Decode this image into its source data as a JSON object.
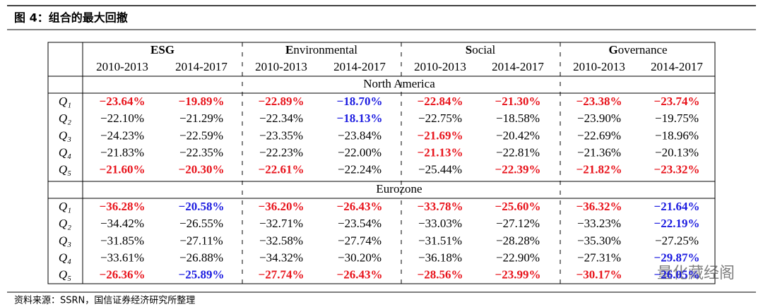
{
  "header": {
    "title": "图 4：组合的最大回撤"
  },
  "table": {
    "groups": [
      "ESG",
      "Environmental",
      "Social",
      "Governance"
    ],
    "periods": [
      "2010-2013",
      "2014-2017",
      "2010-2013",
      "2014-2017",
      "2010-2013",
      "2014-2017",
      "2010-2013",
      "2014-2017"
    ],
    "colors": {
      "red": "#e8141c",
      "blue": "#1c1ce0"
    },
    "sections": [
      {
        "region": "North America",
        "rows": [
          {
            "label": "Q₁",
            "cells": [
              {
                "text": "−23.64%",
                "color": "red"
              },
              {
                "text": "−19.89%",
                "color": "red"
              },
              {
                "text": "−22.89%",
                "color": "red"
              },
              {
                "text": "−18.70%",
                "color": "blue"
              },
              {
                "text": "−22.84%",
                "color": "red"
              },
              {
                "text": "−21.30%",
                "color": "red"
              },
              {
                "text": "−23.38%",
                "color": "red"
              },
              {
                "text": "−23.74%",
                "color": "red"
              }
            ]
          },
          {
            "label": "Q₂",
            "cells": [
              "−22.10%",
              "−21.29%",
              "−22.34%",
              {
                "text": "−18.13%",
                "color": "blue"
              },
              "−22.75%",
              "−18.58%",
              "−23.90%",
              "−19.75%"
            ]
          },
          {
            "label": "Q₃",
            "cells": [
              "−24.23%",
              "−22.59%",
              "−23.35%",
              "−23.84%",
              {
                "text": "−21.69%",
                "color": "red"
              },
              "−20.42%",
              "−22.69%",
              "−18.96%"
            ]
          },
          {
            "label": "Q₄",
            "cells": [
              "−21.83%",
              "−22.35%",
              "−22.23%",
              "−22.00%",
              {
                "text": "−21.13%",
                "color": "red"
              },
              "−22.81%",
              "−21.36%",
              "−20.13%"
            ]
          },
          {
            "label": "Q₅",
            "cells": [
              {
                "text": "−21.60%",
                "color": "red"
              },
              {
                "text": "−20.30%",
                "color": "red"
              },
              {
                "text": "−22.61%",
                "color": "red"
              },
              "−22.24%",
              "−25.44%",
              {
                "text": "−22.39%",
                "color": "red"
              },
              {
                "text": "−21.82%",
                "color": "red"
              },
              {
                "text": "−23.32%",
                "color": "red"
              }
            ]
          }
        ]
      },
      {
        "region": "Eurozone",
        "rows": [
          {
            "label": "Q₁",
            "cells": [
              {
                "text": "−36.28%",
                "color": "red"
              },
              {
                "text": "−20.58%",
                "color": "blue"
              },
              {
                "text": "−36.20%",
                "color": "red"
              },
              {
                "text": "−26.43%",
                "color": "red"
              },
              {
                "text": "−33.78%",
                "color": "red"
              },
              {
                "text": "−25.60%",
                "color": "red"
              },
              {
                "text": "−36.32%",
                "color": "red"
              },
              {
                "text": "−21.64%",
                "color": "blue"
              }
            ]
          },
          {
            "label": "Q₂",
            "cells": [
              "−34.42%",
              "−26.55%",
              "−32.71%",
              "−23.54%",
              "−33.03%",
              "−27.12%",
              "−33.23%",
              {
                "text": "−22.19%",
                "color": "blue"
              }
            ]
          },
          {
            "label": "Q₃",
            "cells": [
              "−31.85%",
              "−27.11%",
              "−32.58%",
              "−27.74%",
              "−31.51%",
              "−28.28%",
              "−35.30%",
              "−27.25%"
            ]
          },
          {
            "label": "Q₄",
            "cells": [
              "−33.61%",
              "−26.88%",
              "−34.32%",
              "−30.20%",
              "−36.18%",
              "−22.90%",
              "−27.31%",
              {
                "text": "−29.87%",
                "color": "blue"
              }
            ]
          },
          {
            "label": "Q₅",
            "cells": [
              {
                "text": "−26.36%",
                "color": "red"
              },
              {
                "text": "−25.89%",
                "color": "blue"
              },
              {
                "text": "−27.74%",
                "color": "red"
              },
              {
                "text": "−26.43%",
                "color": "red"
              },
              {
                "text": "−28.56%",
                "color": "red"
              },
              {
                "text": "−23.99%",
                "color": "red"
              },
              {
                "text": "−30.17%",
                "color": "red"
              },
              {
                "text": "−26.05%",
                "color": "blue"
              }
            ]
          }
        ]
      }
    ]
  },
  "source": "资料来源：SSRN，国信证券经济研究所整理",
  "watermark": "量化藏经阁"
}
